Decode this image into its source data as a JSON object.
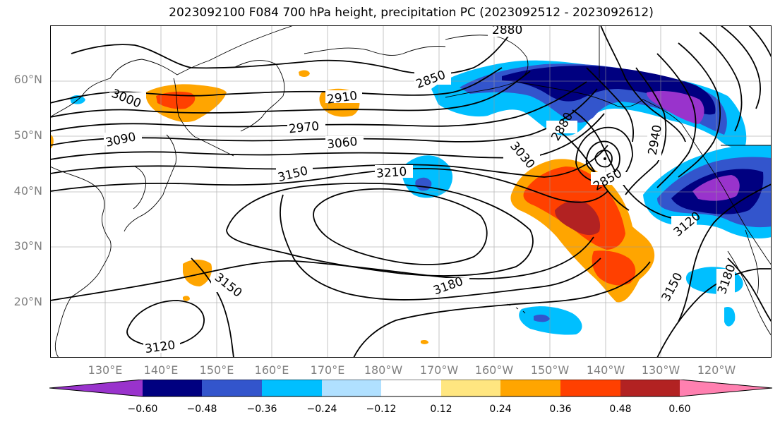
{
  "title": "2023092100 F084 700 hPa height, precipitation PC (2023092512 - 2023092612)",
  "lat_labels": [
    "60°N",
    "50°N",
    "40°N",
    "30°N",
    "20°N"
  ],
  "lon_labels": [
    "130°E",
    "140°E",
    "150°E",
    "160°E",
    "170°E",
    "180°W",
    "170°W",
    "160°W",
    "150°W",
    "140°W",
    "130°W",
    "120°W"
  ],
  "contour_labels": [
    "2880",
    "2850",
    "2910",
    "2970",
    "3000",
    "3090",
    "3060",
    "3150",
    "3210",
    "3030",
    "2880",
    "2850",
    "2940",
    "3120",
    "3150",
    "3180",
    "3180",
    "3150",
    "3120"
  ],
  "colorbar": {
    "ticks": [
      "−0.60",
      "−0.48",
      "−0.36",
      "−0.24",
      "−0.12",
      "0.12",
      "0.24",
      "0.36",
      "0.48",
      "0.60"
    ],
    "colors": [
      "#9933cc",
      "#000080",
      "#3355cc",
      "#00bfff",
      "#b0e0ff",
      "#ffffff",
      "#ffe680",
      "#ffa500",
      "#ff4000",
      "#b22222",
      "#ff80b0"
    ]
  },
  "shading_colors": {
    "neg_light": "#00bfff",
    "neg_mid": "#3355cc",
    "neg_dark": "#000080",
    "neg_max": "#9933cc",
    "pos_light": "#ffa500",
    "pos_mid": "#ff4000",
    "pos_dark": "#b22222",
    "pos_min": "#ffe680"
  }
}
